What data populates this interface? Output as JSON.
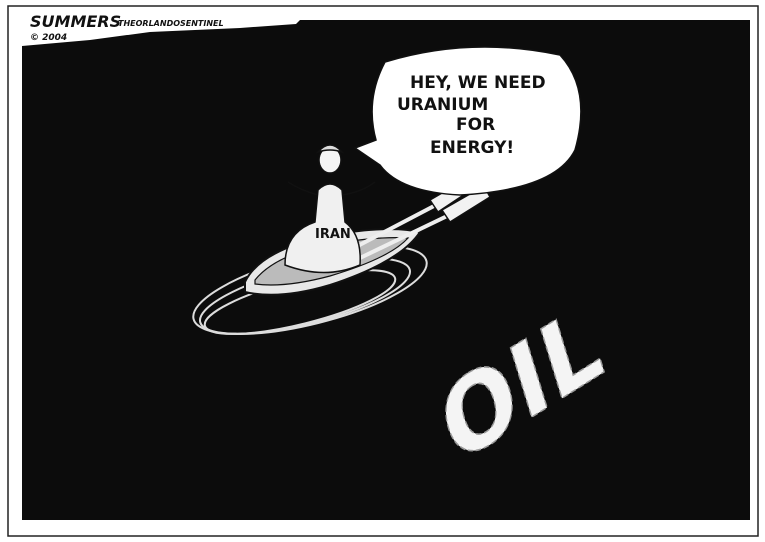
{
  "signature": {
    "artist": "SUMMERS",
    "publication": "THEORLANDOSENTINEL",
    "copyright": "© 2004"
  },
  "speech_bubble": {
    "lines": [
      "HEY, WE NEED",
      "URANIUM",
      "FOR",
      "ENERGY!"
    ]
  },
  "figure_label": "IRAN",
  "sea_text": "OIL"
}
